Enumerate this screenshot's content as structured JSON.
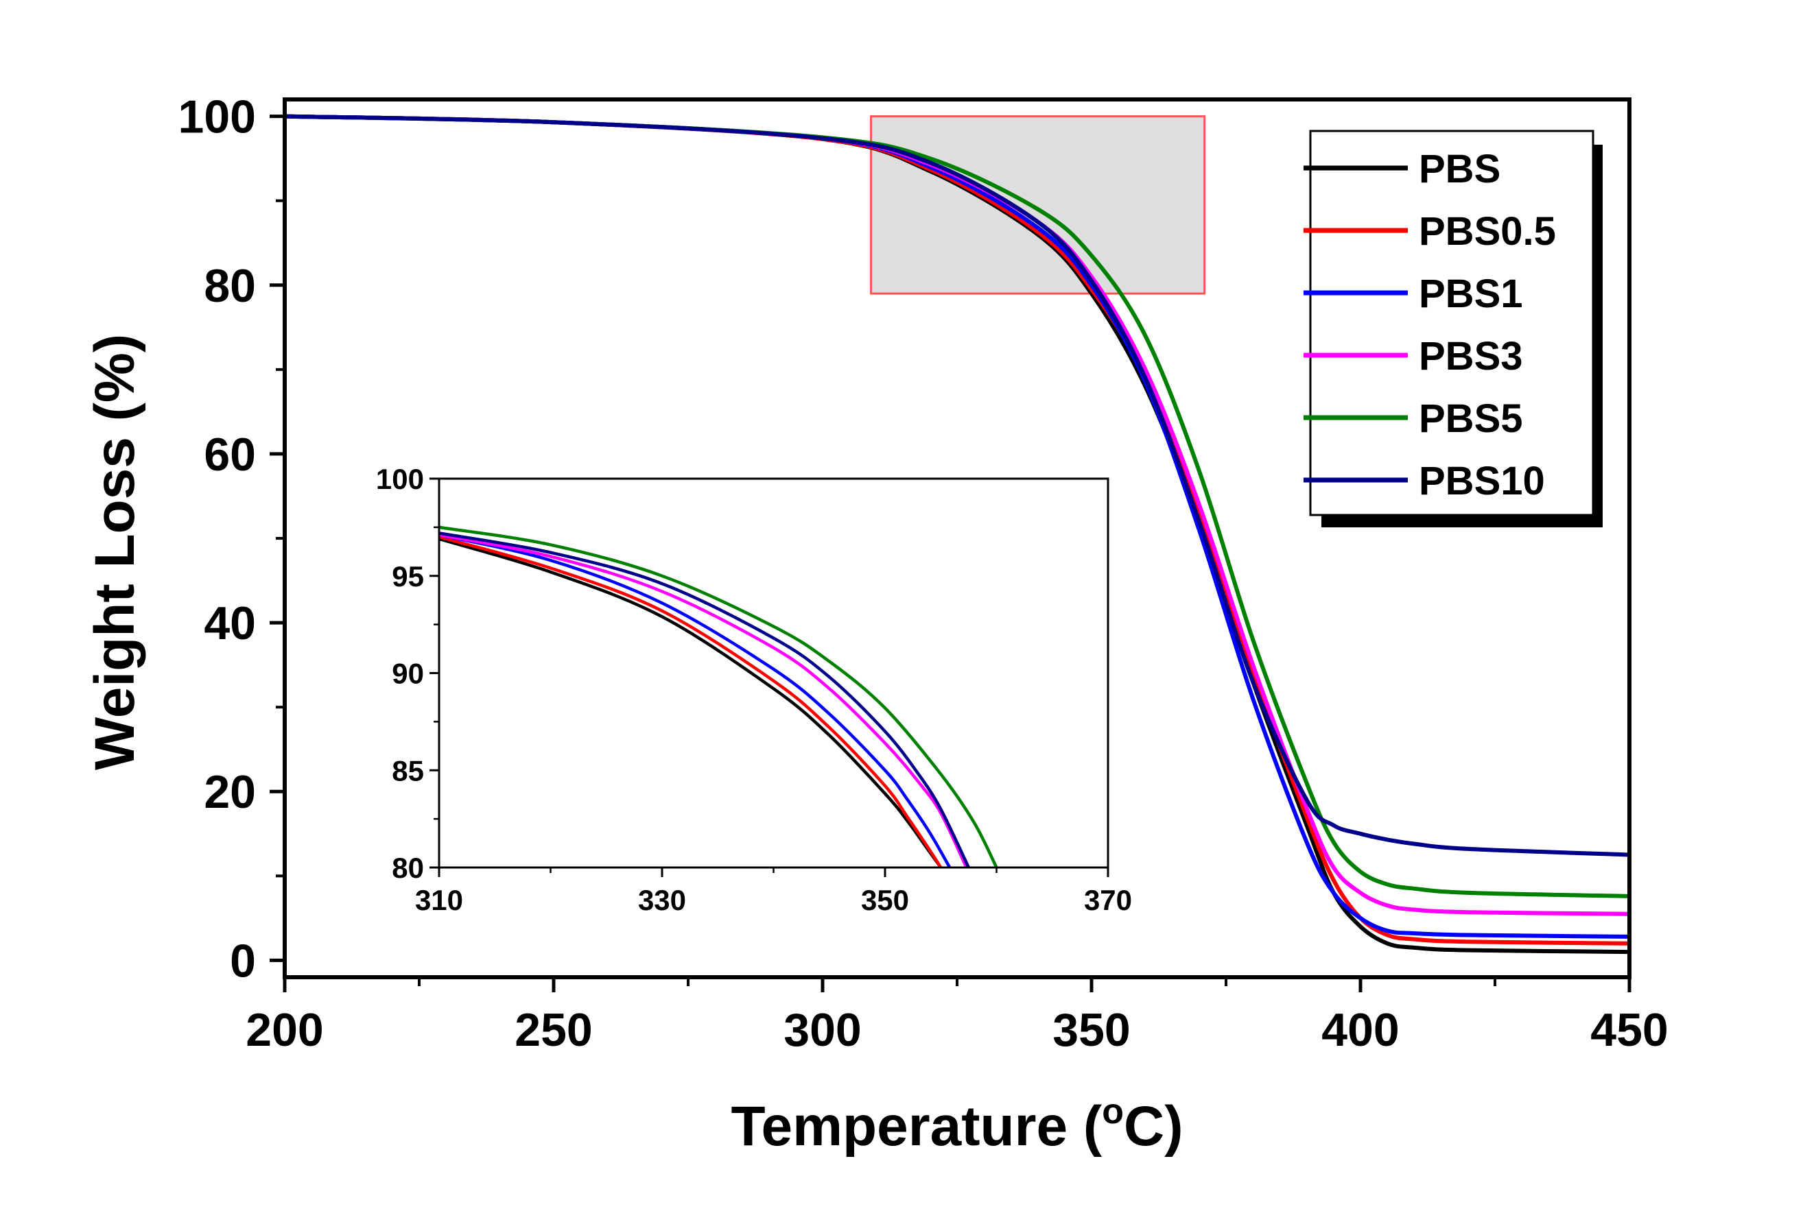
{
  "chart_data": [
    {
      "name": "main",
      "type": "line",
      "xlabel": "Temperature (°C)",
      "xlabel_prefix": "Temperature (",
      "xlabel_super": "o",
      "xlabel_suffix": "C)",
      "ylabel": "Weight Loss (%)",
      "xlim": [
        200,
        450
      ],
      "ylim": [
        -2,
        102
      ],
      "xticks": [
        200,
        250,
        300,
        350,
        400,
        450
      ],
      "yticks": [
        0,
        20,
        40,
        60,
        80,
        100
      ],
      "legend_position": "top-right",
      "zoom_region": {
        "x": [
          309,
          371
        ],
        "y": [
          79,
          100
        ]
      },
      "series": [
        {
          "name": "PBS",
          "color": "#000000",
          "x": [
            200,
            250,
            300,
            320,
            340,
            350,
            360,
            370,
            380,
            390,
            395,
            400,
            405,
            410,
            420,
            450
          ],
          "y": [
            100,
            99.3,
            97.3,
            93.5,
            86,
            79,
            68,
            52,
            33,
            16,
            8,
            4,
            2,
            1.5,
            1.2,
            1.0
          ]
        },
        {
          "name": "PBS0.5",
          "color": "#ff0000",
          "x": [
            200,
            250,
            300,
            320,
            340,
            350,
            360,
            370,
            380,
            390,
            395,
            400,
            405,
            410,
            420,
            450
          ],
          "y": [
            100,
            99.3,
            97.3,
            93.7,
            86.3,
            79.5,
            69,
            53,
            34,
            17,
            9.5,
            5,
            3,
            2.5,
            2.2,
            2.0
          ]
        },
        {
          "name": "PBS1",
          "color": "#0000ff",
          "x": [
            200,
            250,
            300,
            320,
            340,
            350,
            360,
            370,
            380,
            390,
            395,
            400,
            405,
            410,
            420,
            450
          ],
          "y": [
            100,
            99.3,
            97.4,
            94,
            86.8,
            80,
            68.5,
            51,
            31,
            14,
            8,
            5,
            3.5,
            3.2,
            3.0,
            2.8
          ]
        },
        {
          "name": "PBS3",
          "color": "#ff00ff",
          "x": [
            200,
            250,
            300,
            320,
            340,
            350,
            360,
            370,
            380,
            390,
            395,
            400,
            405,
            410,
            420,
            450
          ],
          "y": [
            100,
            99.3,
            97.4,
            94.3,
            87.5,
            81,
            70,
            54,
            35,
            18,
            11,
            8,
            6.5,
            6,
            5.7,
            5.5
          ]
        },
        {
          "name": "PBS5",
          "color": "#008000",
          "x": [
            200,
            250,
            300,
            320,
            340,
            350,
            360,
            370,
            380,
            390,
            395,
            400,
            405,
            410,
            420,
            450
          ],
          "y": [
            100,
            99.3,
            97.5,
            95,
            89,
            83.5,
            74,
            58,
            38,
            21,
            14,
            10.5,
            9,
            8.5,
            8,
            7.6
          ]
        },
        {
          "name": "PBS10",
          "color": "#00008b",
          "x": [
            200,
            250,
            300,
            320,
            340,
            350,
            360,
            370,
            380,
            390,
            395,
            400,
            405,
            410,
            420,
            450
          ],
          "y": [
            100,
            99.3,
            97.4,
            94.5,
            87.5,
            80.5,
            69,
            52,
            33,
            19,
            16,
            15,
            14.3,
            13.8,
            13.2,
            12.5
          ]
        }
      ]
    },
    {
      "name": "inset",
      "type": "line",
      "xlim": [
        310,
        370
      ],
      "ylim": [
        80,
        100
      ],
      "xticks": [
        310,
        330,
        350,
        370
      ],
      "yticks": [
        80,
        85,
        90,
        95,
        100
      ],
      "series": [
        {
          "name": "PBS",
          "color": "#000000",
          "x": [
            310,
            320,
            330,
            340,
            345,
            350,
            352,
            354,
            355
          ],
          "y": [
            96.9,
            95.2,
            92.9,
            89.2,
            86.8,
            83.8,
            82.4,
            80.8,
            80
          ]
        },
        {
          "name": "PBS0.5",
          "color": "#ff0000",
          "x": [
            310,
            320,
            330,
            340,
            345,
            350,
            352,
            354,
            355
          ],
          "y": [
            97.0,
            95.4,
            93.2,
            89.6,
            87.2,
            84.2,
            82.6,
            80.9,
            80
          ]
        },
        {
          "name": "PBS1",
          "color": "#0000ff",
          "x": [
            310,
            320,
            330,
            340,
            345,
            350,
            352,
            354,
            355.8
          ],
          "y": [
            97.1,
            95.8,
            93.6,
            90.2,
            87.9,
            85.0,
            83.5,
            81.8,
            80
          ]
        },
        {
          "name": "PBS3",
          "color": "#ff00ff",
          "x": [
            310,
            320,
            330,
            340,
            345,
            350,
            353,
            355,
            357.3
          ],
          "y": [
            97.1,
            96.0,
            94.2,
            91.3,
            89.2,
            86.4,
            84.4,
            82.8,
            80
          ]
        },
        {
          "name": "PBS5",
          "color": "#008000",
          "x": [
            310,
            320,
            330,
            340,
            345,
            350,
            355,
            358,
            360
          ],
          "y": [
            97.5,
            96.6,
            95.0,
            92.4,
            90.6,
            88.2,
            84.8,
            82.3,
            80
          ]
        },
        {
          "name": "PBS10",
          "color": "#00008b",
          "x": [
            310,
            320,
            330,
            340,
            345,
            350,
            353,
            355,
            357.5
          ],
          "y": [
            97.2,
            96.2,
            94.6,
            91.8,
            89.8,
            87.0,
            84.8,
            83.0,
            80
          ]
        }
      ]
    }
  ]
}
